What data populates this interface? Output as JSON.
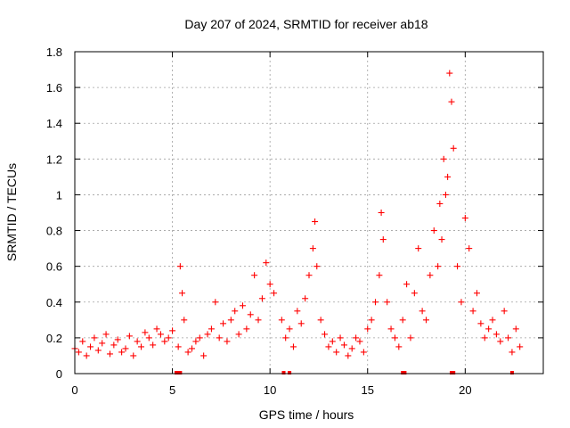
{
  "chart_data": {
    "type": "scatter",
    "title": "Day 207 of 2024, SRMTID for receiver ab18",
    "xlabel": "GPS time / hours",
    "ylabel": "SRMTID / TECUs",
    "xlim": [
      0,
      24
    ],
    "ylim": [
      0,
      1.8
    ],
    "xticks": [
      "0",
      "5",
      "10",
      "15",
      "20"
    ],
    "xtick_values": [
      0,
      5,
      10,
      15,
      20
    ],
    "yticks": [
      "0",
      "0.2",
      "0.4",
      "0.6",
      "0.8",
      "1",
      "1.2",
      "1.4",
      "1.6",
      "1.8"
    ],
    "ytick_values": [
      0,
      0.2,
      0.4,
      0.6,
      0.8,
      1.0,
      1.2,
      1.4,
      1.6,
      1.8
    ],
    "grid": true,
    "marker": "+",
    "color": "#ff0000",
    "series": [
      {
        "name": "SRMTID",
        "x": [
          0.0,
          0.2,
          0.4,
          0.6,
          0.8,
          1.0,
          1.2,
          1.4,
          1.6,
          1.8,
          2.0,
          2.2,
          2.4,
          2.6,
          2.8,
          3.0,
          3.2,
          3.4,
          3.6,
          3.8,
          4.0,
          4.2,
          4.4,
          4.6,
          4.8,
          5.0,
          5.3,
          5.4,
          5.5,
          5.6,
          5.8,
          6.0,
          6.2,
          6.4,
          6.6,
          6.8,
          7.0,
          7.2,
          7.4,
          7.6,
          7.8,
          8.0,
          8.2,
          8.4,
          8.6,
          8.8,
          9.0,
          9.2,
          9.4,
          9.6,
          9.8,
          10.0,
          10.2,
          10.6,
          10.8,
          11.0,
          11.2,
          11.4,
          11.6,
          11.8,
          12.0,
          12.2,
          12.3,
          12.4,
          12.6,
          12.8,
          13.0,
          13.2,
          13.4,
          13.6,
          13.8,
          14.0,
          14.2,
          14.4,
          14.6,
          14.8,
          15.0,
          15.2,
          15.4,
          15.6,
          15.7,
          15.8,
          16.0,
          16.2,
          16.4,
          16.6,
          16.8,
          17.0,
          17.2,
          17.4,
          17.6,
          17.8,
          18.0,
          18.2,
          18.4,
          18.6,
          18.7,
          18.8,
          18.9,
          19.0,
          19.1,
          19.2,
          19.3,
          19.4,
          19.6,
          19.8,
          20.0,
          20.2,
          20.4,
          20.6,
          20.8,
          21.0,
          21.2,
          21.4,
          21.6,
          21.8,
          22.0,
          22.2,
          22.4,
          22.6,
          22.8
        ],
        "y": [
          0.14,
          0.12,
          0.18,
          0.1,
          0.15,
          0.2,
          0.13,
          0.17,
          0.22,
          0.11,
          0.16,
          0.19,
          0.12,
          0.14,
          0.21,
          0.1,
          0.18,
          0.15,
          0.23,
          0.2,
          0.16,
          0.25,
          0.22,
          0.18,
          0.2,
          0.24,
          0.15,
          0.6,
          0.45,
          0.3,
          0.12,
          0.14,
          0.18,
          0.2,
          0.1,
          0.22,
          0.25,
          0.4,
          0.2,
          0.28,
          0.18,
          0.3,
          0.35,
          0.22,
          0.38,
          0.25,
          0.33,
          0.55,
          0.3,
          0.42,
          0.62,
          0.5,
          0.45,
          0.3,
          0.2,
          0.25,
          0.15,
          0.35,
          0.28,
          0.42,
          0.55,
          0.7,
          0.85,
          0.6,
          0.3,
          0.22,
          0.15,
          0.18,
          0.12,
          0.2,
          0.16,
          0.1,
          0.14,
          0.2,
          0.18,
          0.12,
          0.25,
          0.3,
          0.4,
          0.55,
          0.9,
          0.75,
          0.4,
          0.25,
          0.2,
          0.15,
          0.3,
          0.5,
          0.2,
          0.45,
          0.7,
          0.35,
          0.3,
          0.55,
          0.8,
          0.6,
          0.95,
          0.75,
          1.2,
          1.0,
          1.1,
          1.68,
          1.52,
          1.26,
          0.6,
          0.4,
          0.87,
          0.7,
          0.35,
          0.45,
          0.28,
          0.2,
          0.25,
          0.3,
          0.22,
          0.18,
          0.35,
          0.2,
          0.12,
          0.25,
          0.15
        ]
      }
    ],
    "baseline_markers_x": [
      5.2,
      5.3,
      5.4,
      10.7,
      11.0,
      16.8,
      16.9,
      19.3,
      19.4,
      22.4
    ]
  }
}
